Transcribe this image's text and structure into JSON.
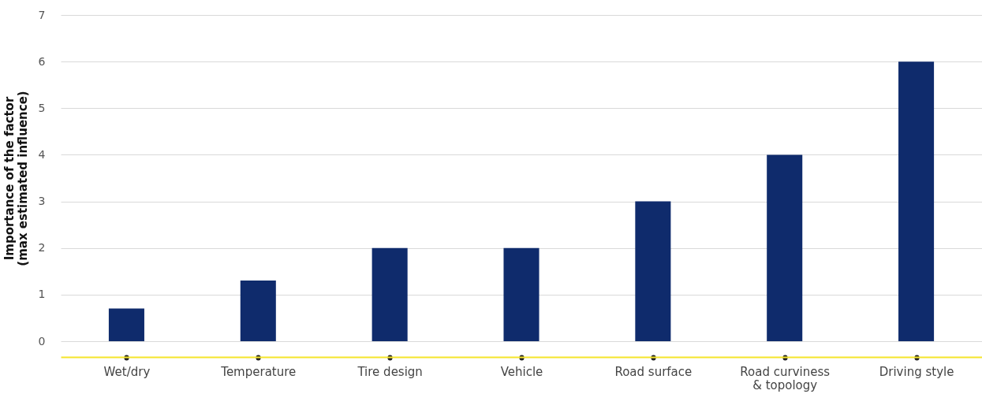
{
  "chart_data": {
    "type": "bar",
    "ylabel": "Importance of the factor\n(max estimated influence)",
    "categories": [
      "Wet/dry",
      "Temperature",
      "Tire design",
      "Vehicle",
      "Road surface",
      "Road curviness\n& topology",
      "Driving style"
    ],
    "values": [
      0.7,
      1.3,
      2,
      2,
      3,
      4,
      6
    ],
    "color": "#0f2b6c",
    "ylim": [
      0,
      7
    ],
    "yticks": [
      0,
      1,
      2,
      3,
      4,
      5,
      6,
      7
    ],
    "grid": "y"
  }
}
